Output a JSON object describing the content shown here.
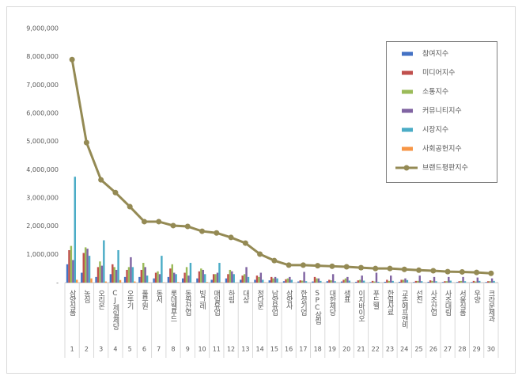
{
  "chart_data": {
    "type": "bar",
    "categories": [
      "삼양식품",
      "농심",
      "오리온",
      "CJ제일제당",
      "오뚜기",
      "풀무원",
      "동서",
      "롯데웰푸드",
      "동원산업",
      "빙그레",
      "매일유업",
      "하림",
      "대상",
      "정다운",
      "남양유업",
      "삼양사",
      "한성기업",
      "SPC삼립",
      "대한제당",
      "샘표",
      "이지바이오",
      "푸드웰",
      "한일사료",
      "교촌에프앤비",
      "선진",
      "사조산업",
      "사조대림",
      "서울식품",
      "우양",
      "크라운제과"
    ],
    "ranks": [
      1,
      2,
      3,
      4,
      5,
      6,
      7,
      8,
      9,
      10,
      11,
      12,
      13,
      14,
      15,
      16,
      17,
      18,
      19,
      20,
      21,
      22,
      23,
      24,
      25,
      26,
      27,
      28,
      29,
      30
    ],
    "series": [
      {
        "name": "참여지수",
        "color": "#4472c4",
        "type": "bar",
        "values": [
          650000,
          350000,
          200000,
          300000,
          200000,
          200000,
          150000,
          200000,
          150000,
          150000,
          100000,
          150000,
          100000,
          100000,
          80000,
          50000,
          40000,
          40000,
          50000,
          40000,
          30000,
          20000,
          30000,
          30000,
          20000,
          30000,
          20000,
          20000,
          20000,
          20000
        ]
      },
      {
        "name": "미디어지수",
        "color": "#c0504d",
        "type": "bar",
        "values": [
          1150000,
          1050000,
          550000,
          650000,
          450000,
          450000,
          350000,
          500000,
          350000,
          400000,
          300000,
          300000,
          250000,
          250000,
          200000,
          120000,
          80000,
          200000,
          100000,
          100000,
          80000,
          60000,
          100000,
          100000,
          60000,
          80000,
          50000,
          50000,
          60000,
          50000
        ]
      },
      {
        "name": "소통지수",
        "color": "#9bbb59",
        "type": "bar",
        "values": [
          1300000,
          1250000,
          750000,
          550000,
          550000,
          700000,
          400000,
          650000,
          550000,
          500000,
          300000,
          450000,
          300000,
          200000,
          150000,
          150000,
          70000,
          150000,
          80000,
          150000,
          100000,
          40000,
          60000,
          100000,
          60000,
          60000,
          50000,
          60000,
          40000,
          50000
        ]
      },
      {
        "name": "커뮤니티지수",
        "color": "#8064a2",
        "type": "bar",
        "values": [
          800000,
          1200000,
          600000,
          450000,
          900000,
          550000,
          300000,
          350000,
          250000,
          450000,
          350000,
          400000,
          550000,
          350000,
          200000,
          200000,
          380000,
          150000,
          300000,
          200000,
          250000,
          350000,
          250000,
          150000,
          250000,
          200000,
          200000,
          200000,
          180000,
          150000
        ]
      },
      {
        "name": "시장지수",
        "color": "#4bacc6",
        "type": "bar",
        "values": [
          3750000,
          950000,
          1500000,
          1150000,
          550000,
          250000,
          950000,
          300000,
          700000,
          300000,
          700000,
          300000,
          200000,
          100000,
          150000,
          100000,
          50000,
          60000,
          50000,
          70000,
          70000,
          30000,
          60000,
          90000,
          50000,
          50000,
          70000,
          50000,
          60000,
          60000
        ]
      },
      {
        "name": "사회공헌지수",
        "color": "#f79646",
        "type": "bar",
        "values": [
          100000,
          150000,
          40000,
          90000,
          40000,
          10000,
          10000,
          20000,
          0,
          20000,
          10000,
          0,
          0,
          10000,
          0,
          0,
          0,
          0,
          0,
          0,
          0,
          0,
          0,
          0,
          0,
          0,
          0,
          0,
          0,
          0
        ]
      },
      {
        "name": "브랜드평판지수",
        "color": "#948a54",
        "type": "line",
        "values": [
          7900000,
          4960000,
          3640000,
          3190000,
          2690000,
          2160000,
          2160000,
          2020000,
          1990000,
          1820000,
          1760000,
          1600000,
          1400000,
          1010000,
          780000,
          620000,
          620000,
          600000,
          580000,
          560000,
          530000,
          500000,
          500000,
          470000,
          440000,
          420000,
          390000,
          380000,
          360000,
          330000
        ]
      }
    ],
    "ylim": [
      0,
      9000000
    ],
    "yticks": [
      {
        "value": 0,
        "label": "-"
      },
      {
        "value": 1000000,
        "label": "1,000,000"
      },
      {
        "value": 2000000,
        "label": "2,000,000"
      },
      {
        "value": 3000000,
        "label": "3,000,000"
      },
      {
        "value": 4000000,
        "label": "4,000,000"
      },
      {
        "value": 5000000,
        "label": "5,000,000"
      },
      {
        "value": 6000000,
        "label": "6,000,000"
      },
      {
        "value": 7000000,
        "label": "7,000,000"
      },
      {
        "value": 8000000,
        "label": "8,000,000"
      },
      {
        "value": 9000000,
        "label": "9,000,000"
      }
    ],
    "grid": false,
    "legend": "top-right"
  }
}
